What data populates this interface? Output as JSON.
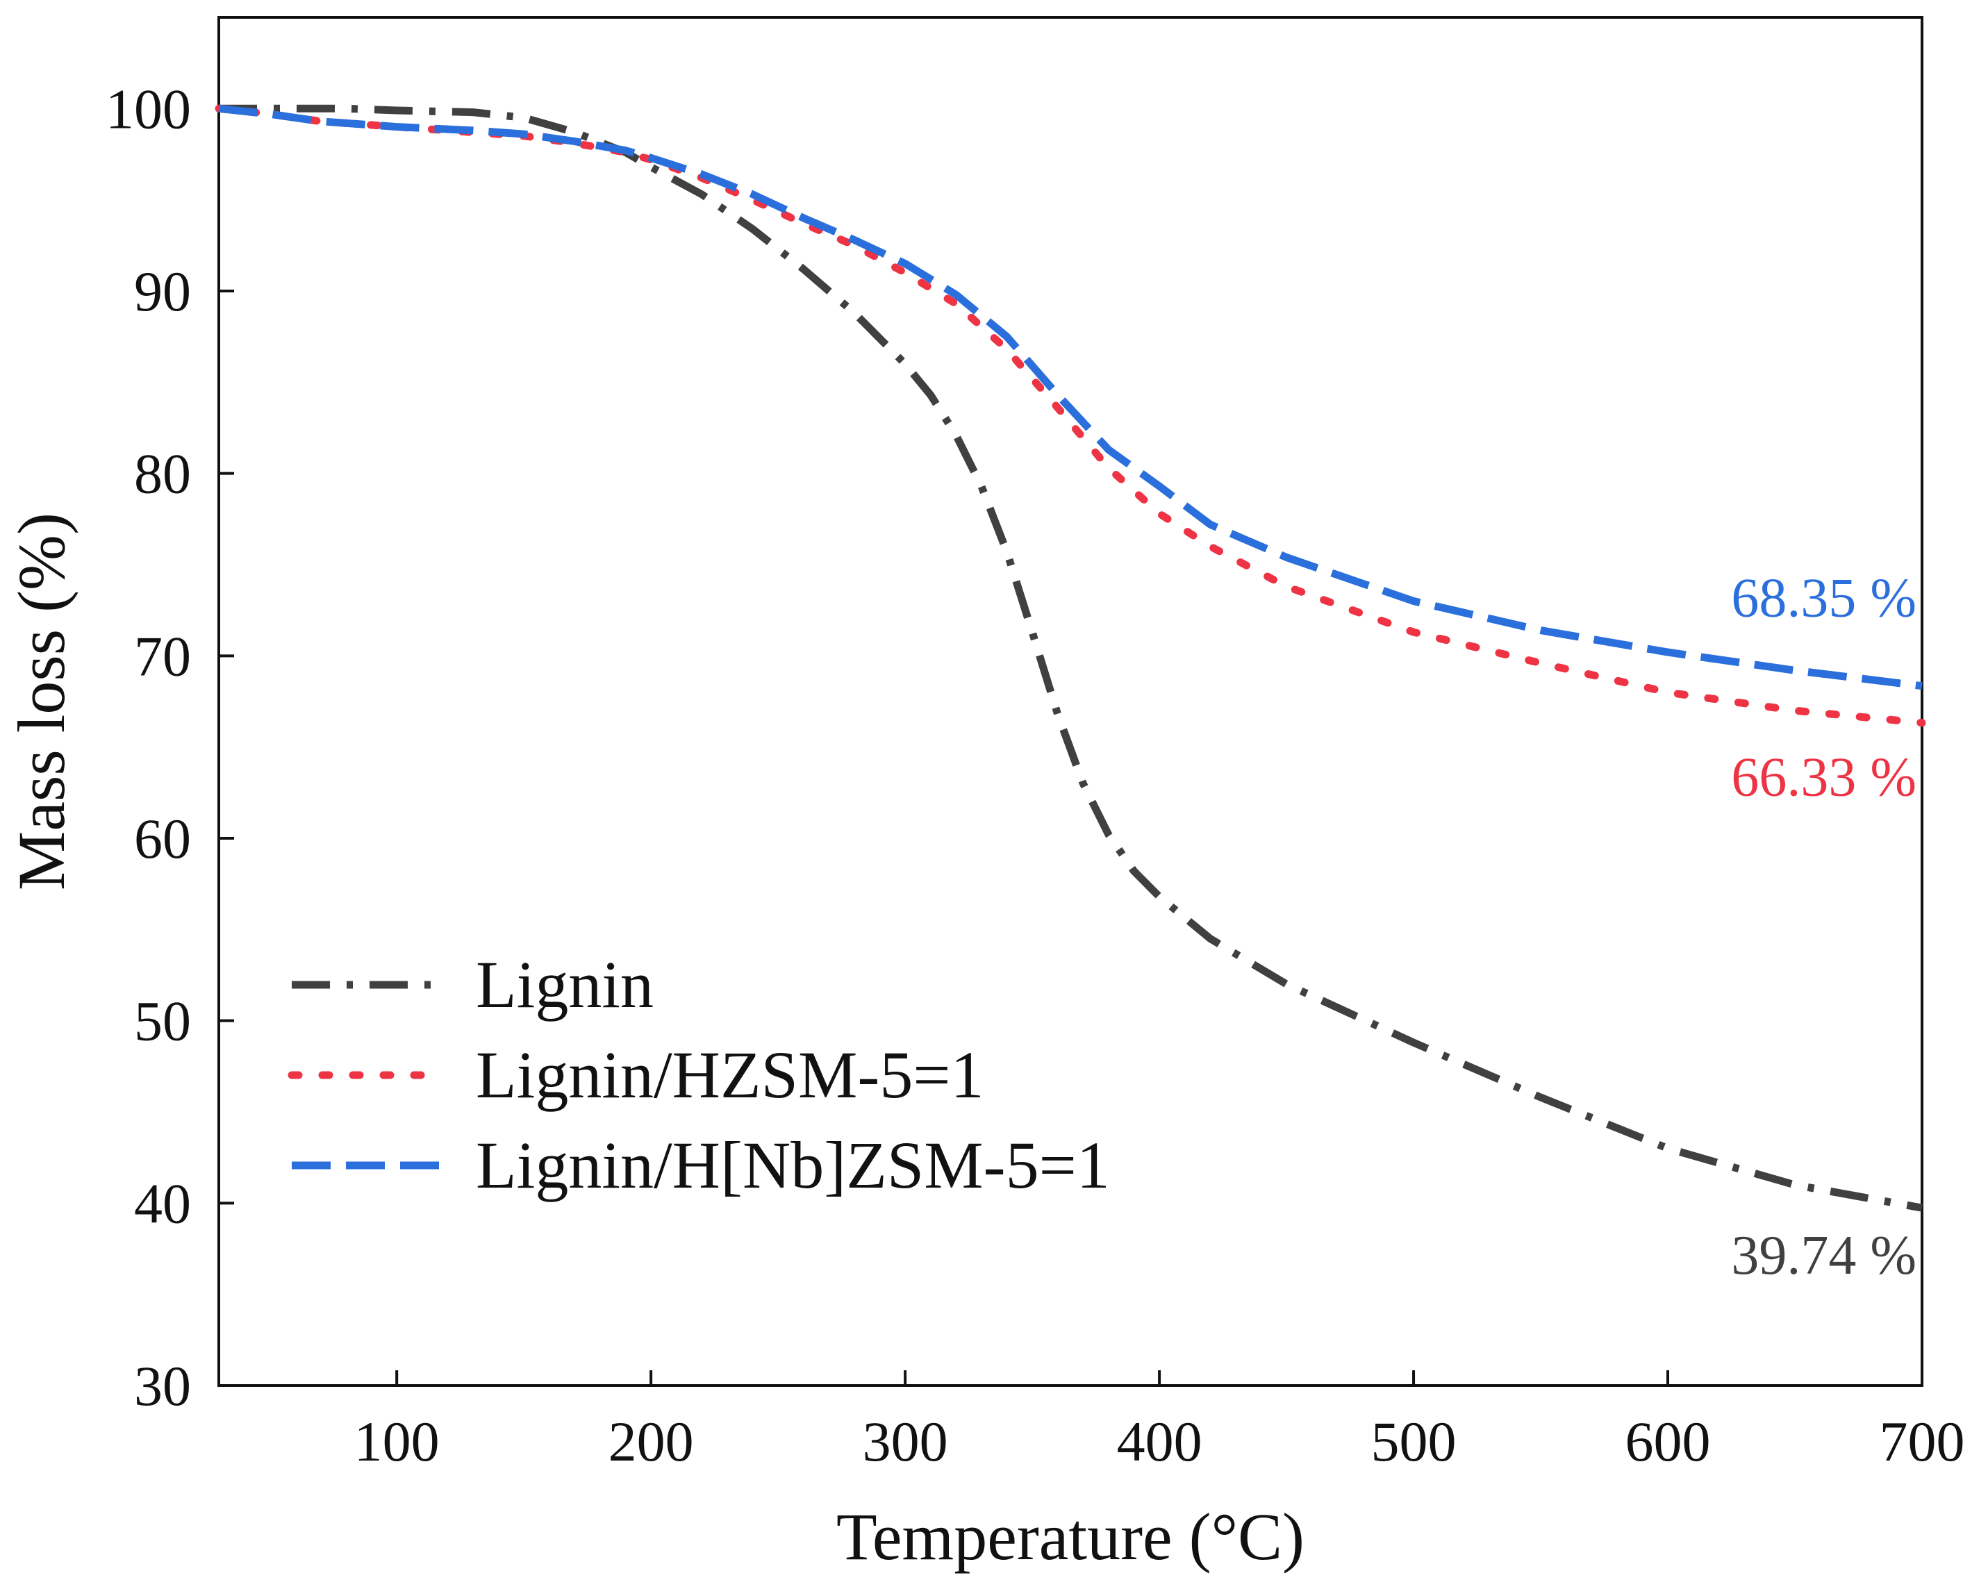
{
  "chart_data": {
    "type": "line",
    "title": "",
    "xlabel": "Temperature (°C)",
    "ylabel": "Mass loss (%)",
    "xlim": [
      30,
      700
    ],
    "ylim": [
      30,
      105
    ],
    "xticks": [
      100,
      200,
      300,
      400,
      500,
      600,
      700
    ],
    "yticks": [
      30,
      40,
      50,
      60,
      70,
      80,
      90,
      100
    ],
    "grid": false,
    "legend_position": "lower-left",
    "series": [
      {
        "name": "Lignin",
        "color": "#404040",
        "style": "dash-dot",
        "x": [
          30,
          50,
          80,
          100,
          130,
          150,
          170,
          190,
          200,
          220,
          240,
          260,
          280,
          300,
          310,
          320,
          330,
          340,
          350,
          360,
          370,
          380,
          390,
          400,
          420,
          450,
          500,
          550,
          600,
          650,
          700
        ],
        "y": [
          100,
          100,
          100,
          99.9,
          99.8,
          99.5,
          98.7,
          97.6,
          96.8,
          95.3,
          93.4,
          91.2,
          88.8,
          86.0,
          84.3,
          82.1,
          79.3,
          75.7,
          71.3,
          66.8,
          63.0,
          60.2,
          58.2,
          56.8,
          54.5,
          52.0,
          48.8,
          45.8,
          43.0,
          41.0,
          39.74
        ],
        "end_label": "39.74 %"
      },
      {
        "name": "Lignin/HZSM-5=1",
        "color": "#ee3344",
        "style": "dotted",
        "x": [
          30,
          50,
          70,
          100,
          130,
          150,
          170,
          190,
          200,
          220,
          240,
          260,
          280,
          300,
          320,
          340,
          360,
          380,
          400,
          420,
          450,
          500,
          550,
          600,
          650,
          700
        ],
        "y": [
          100,
          99.7,
          99.3,
          99.0,
          98.7,
          98.5,
          98.1,
          97.6,
          97.2,
          96.2,
          95.0,
          93.7,
          92.5,
          91.0,
          89.3,
          86.8,
          83.6,
          80.3,
          77.8,
          76.0,
          73.8,
          71.3,
          69.6,
          68.0,
          67.0,
          66.33
        ],
        "end_label": "66.33 %"
      },
      {
        "name": "Lignin/H[Nb]ZSM-5=1",
        "color": "#2a6fdb",
        "style": "dashed",
        "x": [
          30,
          50,
          70,
          100,
          130,
          150,
          170,
          190,
          200,
          220,
          240,
          260,
          280,
          300,
          320,
          340,
          360,
          380,
          400,
          420,
          450,
          500,
          550,
          600,
          650,
          700
        ],
        "y": [
          100,
          99.7,
          99.3,
          99.0,
          98.8,
          98.6,
          98.2,
          97.7,
          97.3,
          96.4,
          95.3,
          94.0,
          92.8,
          91.5,
          89.8,
          87.5,
          84.3,
          81.3,
          79.3,
          77.2,
          75.4,
          73.0,
          71.4,
          70.2,
          69.2,
          68.35
        ],
        "end_label": "68.35 %"
      }
    ]
  }
}
